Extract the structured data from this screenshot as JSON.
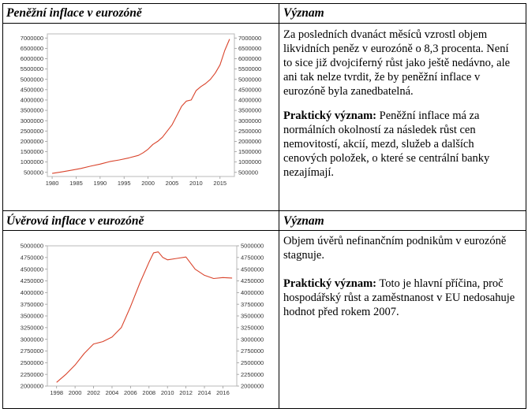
{
  "table": {
    "row1": {
      "left_header": "Peněžní inflace v eurozóně",
      "right_header": "Význam",
      "para1": "Za posledních dvanáct měsíců vzrostl objem likvidních peněz v eurozóně o 8,3 procenta. Není to sice již dvojciferný růst jako ještě nedávno, ale ani tak nelze tvrdit, že by peněžní inflace v eurozóně byla zanedbatelná.",
      "para2_label": "Praktický význam:",
      "para2_text": " Peněžní inflace má za normálních okolností za následek růst cen nemovitostí, akcií, mezd, služeb a dalších cenových položek, o které se centrální banky nezajímají."
    },
    "row2": {
      "left_header": "Úvěrová inflace v eurozóně",
      "right_header": "Význam",
      "para1": "Objem úvěrů nefinančním podnikům v eurozóně stagnuje.",
      "para2_label": "Praktický význam:",
      "para2_text": " Toto je hlavní příčina, proč hospodářský růst a zaměstnanost v EU nedosahuje hodnot před rokem 2007."
    }
  },
  "chart_data": [
    {
      "type": "line",
      "title": "",
      "xlabel": "",
      "ylabel": "",
      "xlim": [
        1979,
        2018
      ],
      "ylim": [
        300000,
        7200000
      ],
      "x_ticks": [
        1980,
        1985,
        1990,
        1995,
        2000,
        2005,
        2010,
        2015
      ],
      "x_tick_labels": [
        "1980",
        "1985",
        "1990",
        "1995",
        "2000",
        "2005",
        "2010",
        "2015"
      ],
      "y_ticks": [
        500000,
        1000000,
        1500000,
        2000000,
        2500000,
        3000000,
        3500000,
        4000000,
        4500000,
        5000000,
        5500000,
        6000000,
        6500000,
        7000000
      ],
      "y_tick_labels": [
        "500000",
        "1000000",
        "1500000",
        "2000000",
        "2500000",
        "3000000",
        "3500000",
        "4000000",
        "4500000",
        "5000000",
        "5500000",
        "6000000",
        "6500000",
        "7000000"
      ],
      "grid": false,
      "color": "#d9432b",
      "series": [
        {
          "x": [
            1980,
            1982,
            1984,
            1986,
            1988,
            1990,
            1992,
            1994,
            1996,
            1998,
            1999,
            2000,
            2001,
            2002,
            2003,
            2004,
            2005,
            2006,
            2007,
            2008,
            2009,
            2010,
            2011,
            2012,
            2013,
            2014,
            2015,
            2016,
            2017
          ],
          "y": [
            450000,
            520000,
            600000,
            690000,
            800000,
            900000,
            1020000,
            1100000,
            1200000,
            1320000,
            1450000,
            1620000,
            1850000,
            2000000,
            2200000,
            2500000,
            2800000,
            3250000,
            3700000,
            3950000,
            4000000,
            4450000,
            4650000,
            4800000,
            5000000,
            5300000,
            5700000,
            6400000,
            6950000
          ]
        }
      ]
    },
    {
      "type": "line",
      "title": "",
      "xlabel": "",
      "ylabel": "",
      "xlim": [
        1997,
        2017.5
      ],
      "ylim": [
        2000000,
        5000000
      ],
      "x_ticks": [
        1998,
        2000,
        2002,
        2004,
        2006,
        2008,
        2010,
        2012,
        2014,
        2016
      ],
      "x_tick_labels": [
        "1998",
        "2000",
        "2002",
        "2004",
        "2006",
        "2008",
        "2010",
        "2012",
        "2014",
        "2016"
      ],
      "y_ticks": [
        2000000,
        2250000,
        2500000,
        2750000,
        3000000,
        3250000,
        3500000,
        3750000,
        4000000,
        4250000,
        4500000,
        4750000,
        5000000
      ],
      "y_tick_labels": [
        "2000000",
        "2250000",
        "2500000",
        "2750000",
        "3000000",
        "3250000",
        "3500000",
        "3750000",
        "4000000",
        "4250000",
        "4500000",
        "4750000",
        "5000000"
      ],
      "grid": false,
      "color": "#d9432b",
      "series": [
        {
          "x": [
            1998,
            1999,
            2000,
            2001,
            2002,
            2003,
            2004,
            2005,
            2006,
            2007,
            2008,
            2008.5,
            2009,
            2009.5,
            2010,
            2011,
            2012,
            2013,
            2014,
            2015,
            2016,
            2017
          ],
          "y": [
            2080000,
            2250000,
            2450000,
            2700000,
            2900000,
            2950000,
            3050000,
            3250000,
            3700000,
            4200000,
            4650000,
            4850000,
            4870000,
            4750000,
            4700000,
            4730000,
            4760000,
            4500000,
            4370000,
            4300000,
            4320000,
            4310000
          ]
        }
      ]
    }
  ]
}
